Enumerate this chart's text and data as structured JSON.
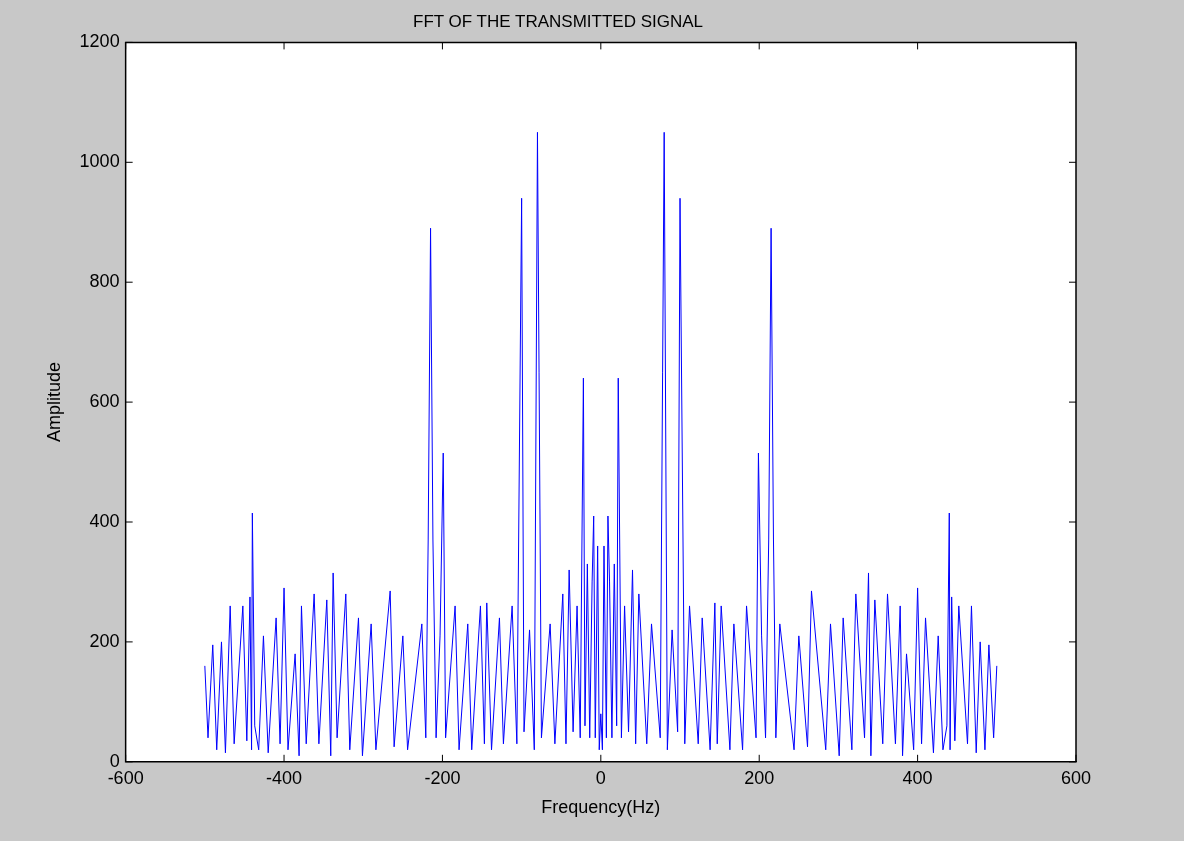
{
  "chart_data": {
    "type": "line",
    "title": "FFT OF THE TRANSMITTED SIGNAL",
    "xlabel": "Frequency(Hz)",
    "ylabel": "Amplitude",
    "x": [
      -500,
      -496,
      -490,
      -485,
      -479,
      -474,
      -468,
      -463,
      -452,
      -447,
      -443,
      -441,
      -440,
      -437,
      -432,
      -426,
      -420,
      -410,
      -405,
      -400,
      -395,
      -386,
      -381,
      -378,
      -372,
      -362,
      -356,
      -346,
      -341,
      -338,
      -333,
      -322,
      -317,
      -306,
      -301,
      -290,
      -284,
      -266,
      -261,
      -250,
      -244,
      -226,
      -221,
      -218,
      -215,
      -212,
      -208,
      -203,
      -199,
      -196,
      -184,
      -179,
      -168,
      -163,
      -152,
      -147,
      -144,
      -138,
      -128,
      -123,
      -112,
      -106,
      -100,
      -97,
      -90,
      -84,
      -80,
      -78,
      -75,
      -64,
      -58,
      -48,
      -44,
      -40,
      -35,
      -30,
      -26,
      -22,
      -20,
      -17,
      -14,
      -11,
      -9,
      -7,
      -4,
      -2,
      0,
      2,
      4,
      7,
      9,
      11,
      14,
      17,
      20,
      22,
      26,
      30,
      35,
      40,
      44,
      48,
      58,
      64,
      75,
      78,
      80,
      84,
      90,
      97,
      100,
      106,
      112,
      123,
      128,
      138,
      144,
      147,
      152,
      163,
      168,
      179,
      184,
      196,
      199,
      203,
      208,
      212,
      215,
      218,
      221,
      226,
      244,
      250,
      261,
      266,
      284,
      290,
      301,
      306,
      317,
      322,
      333,
      338,
      341,
      346,
      356,
      362,
      372,
      378,
      381,
      386,
      395,
      400,
      405,
      410,
      420,
      426,
      432,
      437,
      440,
      441,
      443,
      447,
      452,
      463,
      468,
      474,
      479,
      485,
      490,
      496,
      500
    ],
    "series": [
      {
        "color": "#0000ff",
        "values": [
          160,
          40,
          195,
          20,
          200,
          15,
          260,
          30,
          260,
          35,
          275,
          20,
          415,
          60,
          20,
          210,
          15,
          240,
          30,
          290,
          20,
          180,
          10,
          260,
          30,
          280,
          30,
          270,
          10,
          315,
          40,
          280,
          20,
          240,
          10,
          230,
          20,
          285,
          25,
          210,
          20,
          230,
          40,
          370,
          890,
          370,
          40,
          210,
          515,
          40,
          260,
          20,
          230,
          20,
          260,
          30,
          265,
          20,
          240,
          30,
          260,
          30,
          940,
          50,
          220,
          20,
          1050,
          650,
          40,
          230,
          30,
          280,
          30,
          320,
          50,
          260,
          40,
          640,
          60,
          330,
          40,
          300,
          410,
          40,
          360,
          20,
          80,
          20,
          360,
          40,
          410,
          300,
          40,
          330,
          60,
          640,
          40,
          260,
          50,
          320,
          30,
          280,
          30,
          230,
          40,
          650,
          1050,
          20,
          220,
          50,
          940,
          30,
          260,
          30,
          240,
          20,
          265,
          30,
          260,
          20,
          230,
          20,
          260,
          40,
          515,
          210,
          40,
          370,
          890,
          370,
          40,
          230,
          20,
          210,
          25,
          285,
          20,
          230,
          10,
          240,
          20,
          280,
          40,
          315,
          10,
          270,
          30,
          280,
          30,
          260,
          10,
          180,
          20,
          290,
          30,
          240,
          15,
          210,
          20,
          60,
          415,
          20,
          275,
          35,
          260,
          30,
          260,
          15,
          200,
          20,
          195,
          40,
          160
        ]
      }
    ],
    "xlim": [
      -600,
      600
    ],
    "xticks": [
      -600,
      -400,
      -200,
      0,
      200,
      400,
      600
    ],
    "ylim": [
      0,
      1200
    ],
    "yticks": [
      0,
      200,
      400,
      600,
      800,
      1000,
      1200
    ],
    "marker": "none",
    "line_style": "solid"
  }
}
